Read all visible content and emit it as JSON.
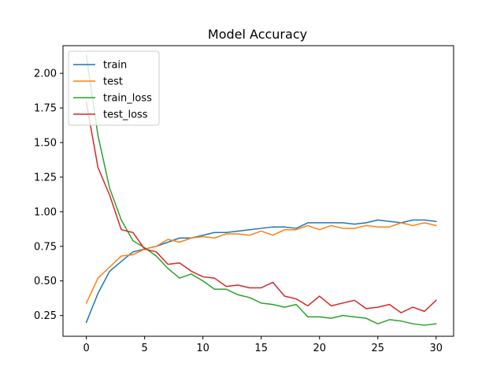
{
  "chart_data": {
    "type": "line",
    "title": "Model Accuracy",
    "xlabel": "",
    "ylabel": "",
    "xlim": [
      -2,
      31.5
    ],
    "ylim": [
      0.1,
      2.2
    ],
    "xticks": [
      0,
      5,
      10,
      15,
      20,
      25,
      30
    ],
    "yticks": [
      0.25,
      0.5,
      0.75,
      1.0,
      1.25,
      1.5,
      1.75,
      2.0
    ],
    "ytick_labels": [
      "0.25",
      "0.50",
      "0.75",
      "1.00",
      "1.25",
      "1.50",
      "1.75",
      "2.00"
    ],
    "legend_position": "top-left",
    "grid": false,
    "x": [
      0,
      1,
      2,
      3,
      4,
      5,
      6,
      7,
      8,
      9,
      10,
      11,
      12,
      13,
      14,
      15,
      16,
      17,
      18,
      19,
      20,
      21,
      22,
      23,
      24,
      25,
      26,
      27,
      28,
      29,
      30
    ],
    "series": [
      {
        "name": "train",
        "color": "#1f77b4",
        "values": [
          0.2,
          0.41,
          0.57,
          0.64,
          0.71,
          0.73,
          0.75,
          0.78,
          0.81,
          0.81,
          0.83,
          0.85,
          0.85,
          0.86,
          0.87,
          0.88,
          0.89,
          0.89,
          0.88,
          0.92,
          0.92,
          0.92,
          0.92,
          0.91,
          0.92,
          0.94,
          0.93,
          0.92,
          0.94,
          0.94,
          0.93
        ]
      },
      {
        "name": "test",
        "color": "#ff7f0e",
        "values": [
          0.34,
          0.52,
          0.6,
          0.68,
          0.69,
          0.73,
          0.75,
          0.8,
          0.78,
          0.81,
          0.82,
          0.81,
          0.84,
          0.84,
          0.83,
          0.86,
          0.83,
          0.87,
          0.87,
          0.9,
          0.87,
          0.9,
          0.88,
          0.88,
          0.9,
          0.89,
          0.89,
          0.92,
          0.9,
          0.92,
          0.9
        ]
      },
      {
        "name": "train_loss",
        "color": "#2ca02c",
        "values": [
          2.13,
          1.55,
          1.17,
          0.94,
          0.79,
          0.74,
          0.68,
          0.59,
          0.52,
          0.55,
          0.5,
          0.44,
          0.44,
          0.4,
          0.38,
          0.34,
          0.33,
          0.31,
          0.33,
          0.24,
          0.24,
          0.23,
          0.25,
          0.24,
          0.23,
          0.19,
          0.22,
          0.21,
          0.19,
          0.18,
          0.19
        ]
      },
      {
        "name": "test_loss",
        "color": "#d62728",
        "values": [
          1.79,
          1.32,
          1.12,
          0.87,
          0.85,
          0.73,
          0.71,
          0.62,
          0.63,
          0.57,
          0.53,
          0.52,
          0.46,
          0.47,
          0.45,
          0.45,
          0.49,
          0.39,
          0.37,
          0.32,
          0.39,
          0.32,
          0.34,
          0.36,
          0.3,
          0.31,
          0.33,
          0.27,
          0.31,
          0.28,
          0.36
        ]
      }
    ]
  }
}
